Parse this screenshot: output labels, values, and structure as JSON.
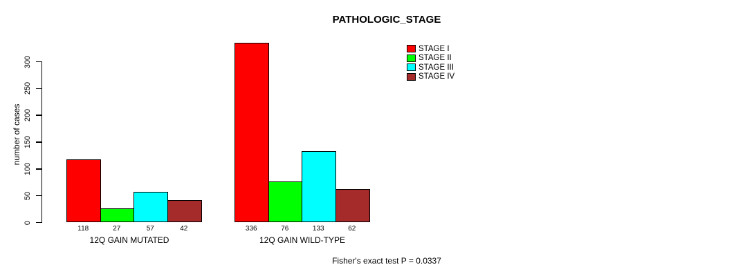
{
  "chart_data": {
    "type": "bar",
    "title": "PATHOLOGIC_STAGE",
    "ylabel": "number of cases",
    "yticks": [
      0,
      50,
      100,
      150,
      200,
      250,
      300
    ],
    "ylim": [
      0,
      340
    ],
    "grid": false,
    "legend_position": "top-right",
    "bar_value_labels": true,
    "categories": [
      "12Q GAIN MUTATED",
      "12Q GAIN WILD-TYPE"
    ],
    "series": [
      {
        "name": "STAGE I",
        "color": "#FF0000",
        "values": [
          118,
          336
        ]
      },
      {
        "name": "STAGE II",
        "color": "#00FF00",
        "values": [
          27,
          76
        ]
      },
      {
        "name": "STAGE III",
        "color": "#00FFFF",
        "values": [
          57,
          133
        ]
      },
      {
        "name": "STAGE IV",
        "color": "#A52A2A",
        "values": [
          42,
          62
        ]
      }
    ],
    "annotation": "Fisher's exact test P = 0.0337"
  },
  "colors": {
    "background": "#FFFFFF",
    "text": "#000000",
    "bar_border": "#000000"
  }
}
